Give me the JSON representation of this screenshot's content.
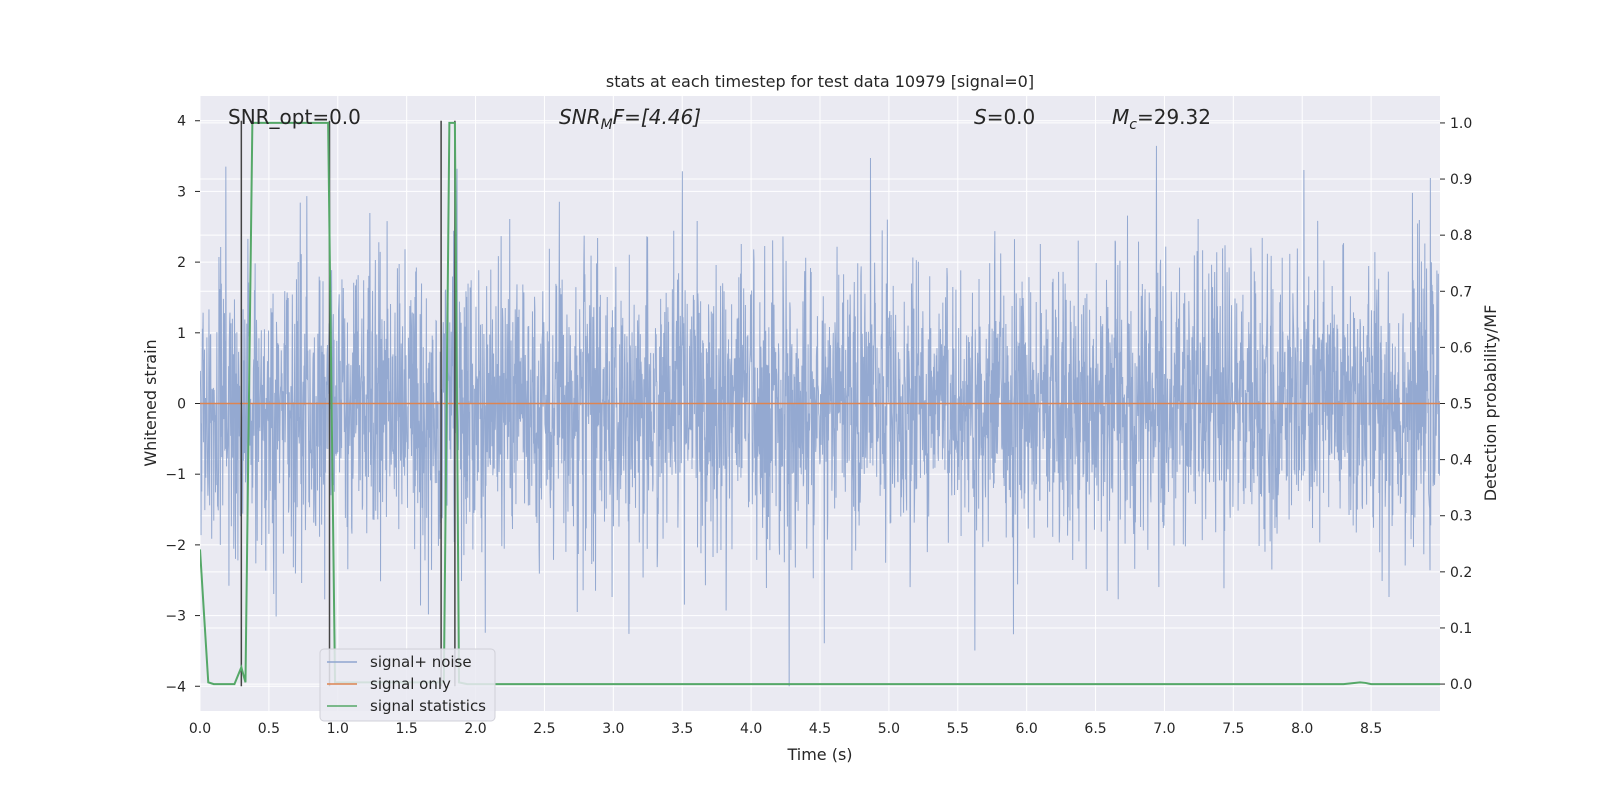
{
  "chart_data": {
    "type": "line",
    "title": "stats at each timestep for test data 10979 [signal=0]",
    "xlabel": "Time (s)",
    "ylabel": "Whitened strain",
    "ylabel_right": "Detection probability/MF",
    "xlim": [
      0.0,
      9.0
    ],
    "ylim": [
      -4.35,
      4.35
    ],
    "ylim_right": [
      -0.048,
      1.048
    ],
    "x_ticks": [
      "0.0",
      "0.5",
      "1.0",
      "1.5",
      "2.0",
      "2.5",
      "3.0",
      "3.5",
      "4.0",
      "4.5",
      "5.0",
      "5.5",
      "6.0",
      "6.5",
      "7.0",
      "7.5",
      "8.0",
      "8.5"
    ],
    "y_ticks": [
      "−4",
      "−3",
      "−2",
      "−1",
      "0",
      "1",
      "2",
      "3",
      "4"
    ],
    "y_ticks_right": [
      "0.0",
      "0.1",
      "0.2",
      "0.3",
      "0.4",
      "0.5",
      "0.6",
      "0.7",
      "0.8",
      "0.9",
      "1.0"
    ],
    "annotations": {
      "snr_opt": "SNR_opt=0.0",
      "snr_mf_main": "SNR",
      "snr_mf_sub": "M",
      "snr_mf_tail": "F=[4.46]",
      "s_main": "S",
      "s_tail": "=0.0",
      "mc_main": "M",
      "mc_sub": "c",
      "mc_tail": "=29.32"
    },
    "legend": {
      "position": "lower-left",
      "entries": [
        "signal+ noise",
        "signal only",
        "signal statistics"
      ]
    },
    "colors": {
      "noise": "#8fa5cf",
      "signal_only": "#dd8452",
      "statistics": "#55a868",
      "markers": "#444444",
      "plot_bg": "#eaeaf2",
      "grid": "#ffffff"
    },
    "series": [
      {
        "name": "signal+ noise",
        "kind": "whitened strain noise, amplitude ~±2.4 with peaks to ±4",
        "seed": 10979
      },
      {
        "name": "signal only",
        "values_x": [
          0.0,
          9.0
        ],
        "values_y": [
          0.0,
          0.0
        ]
      },
      {
        "name": "signal statistics",
        "axis": "right",
        "x": [
          0.0,
          0.06,
          0.1,
          0.25,
          0.3,
          0.33,
          0.38,
          0.5,
          0.85,
          0.93,
          0.98,
          1.1,
          1.75,
          1.77,
          1.81,
          1.85,
          1.88,
          1.94,
          2.0,
          8.3,
          8.42,
          8.46,
          8.5,
          9.0
        ],
        "y": [
          0.24,
          0.003,
          0.0,
          0.0,
          0.03,
          0.003,
          1.0,
          1.0,
          1.0,
          1.0,
          0.003,
          0.003,
          0.003,
          0.003,
          1.0,
          1.0,
          0.003,
          0.0,
          0.0,
          0.0,
          0.003,
          0.002,
          0.0,
          0.0
        ]
      }
    ],
    "marker_lines_x": [
      0.3,
      0.94,
      1.75,
      1.85
    ]
  }
}
